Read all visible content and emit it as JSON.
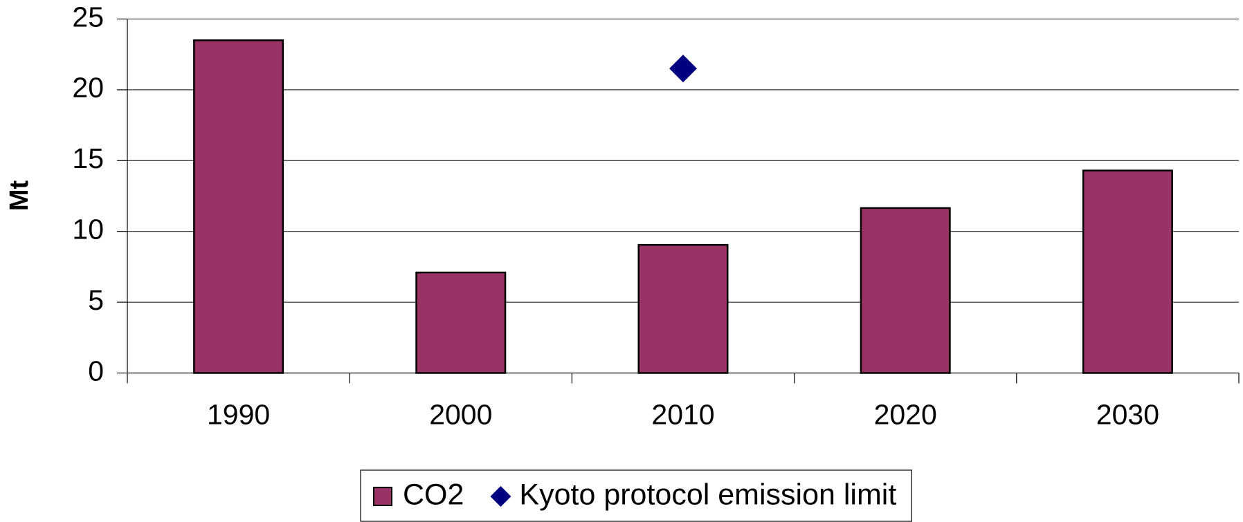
{
  "chart_data": {
    "type": "bar",
    "ylabel": "Mt",
    "categories": [
      "1990",
      "2000",
      "2010",
      "2020",
      "2030"
    ],
    "series": [
      {
        "name": "CO2",
        "color": "#993366",
        "marker": "bar",
        "values": [
          23.5,
          7.1,
          9.05,
          11.65,
          14.3
        ]
      },
      {
        "name": "Kyoto protocol emission limit",
        "color": "#000080",
        "marker": "diamond",
        "values": [
          null,
          null,
          21.5,
          null,
          null
        ]
      }
    ],
    "ylim": [
      0,
      25
    ],
    "yticks": [
      0,
      5,
      10,
      15,
      20,
      25
    ],
    "grid": true,
    "legend": "bottom"
  }
}
